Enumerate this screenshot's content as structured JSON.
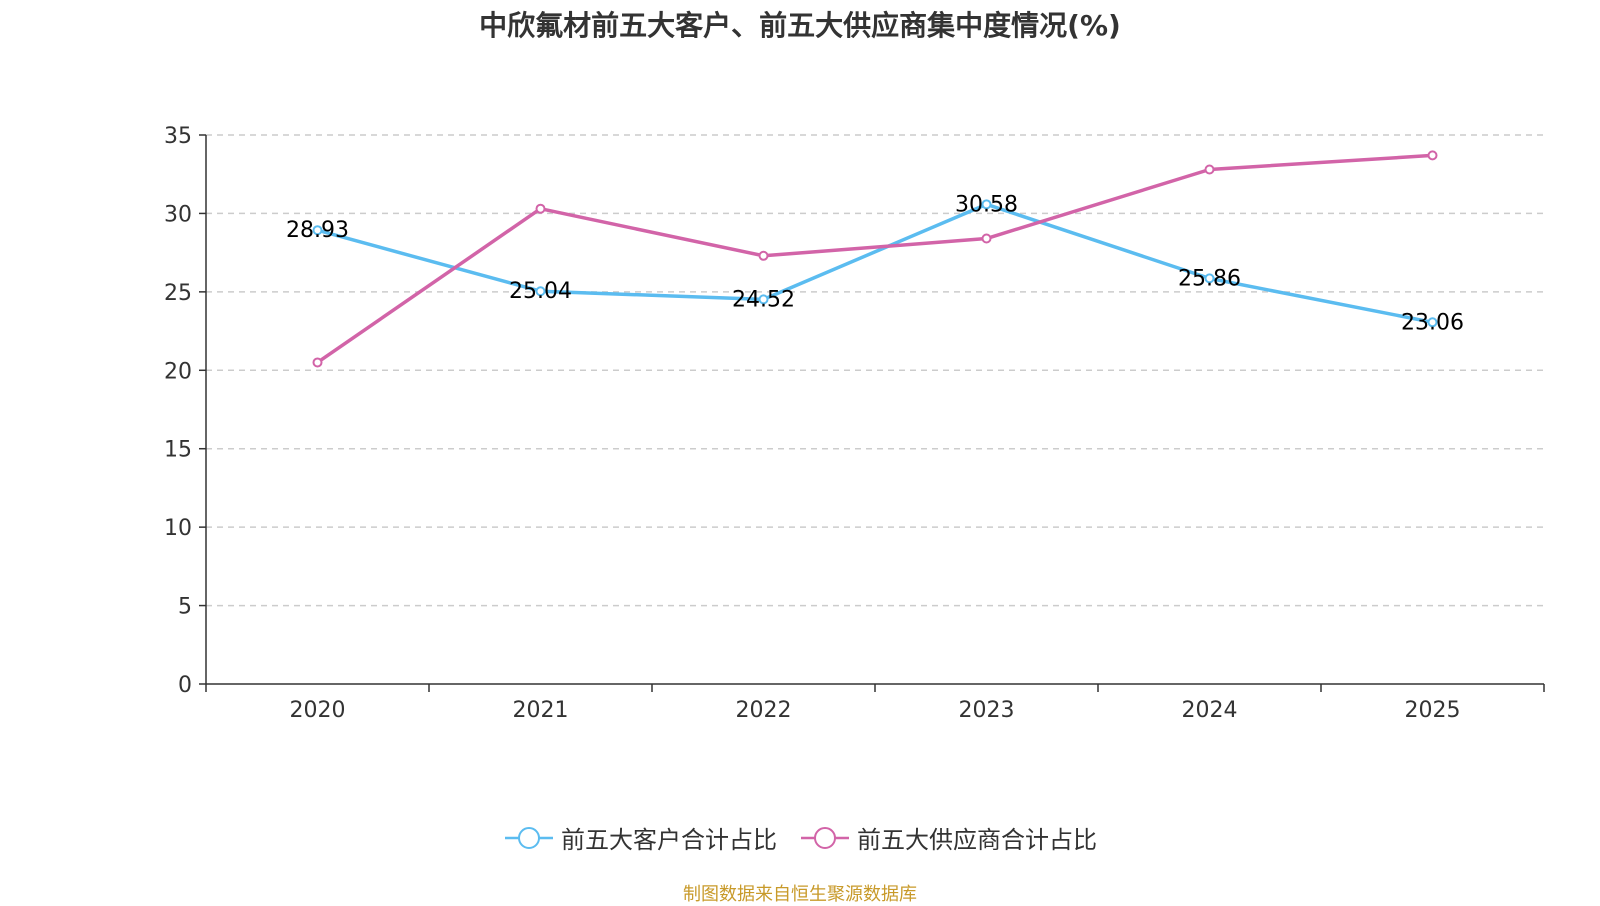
{
  "chart_data": {
    "type": "line",
    "title": "中欣氟材前五大客户、前五大供应商集中度情况(%)",
    "categories": [
      "2020",
      "2021",
      "2022",
      "2023",
      "2024",
      "2025"
    ],
    "ylim": [
      0,
      35
    ],
    "yticks": [
      0,
      5,
      10,
      15,
      20,
      25,
      30,
      35
    ],
    "grid": true,
    "legend_position": "bottom",
    "series": [
      {
        "name": "前五大客户合计占比",
        "color": "#5bbcf0",
        "values": [
          28.93,
          25.04,
          24.52,
          30.58,
          25.86,
          23.06
        ],
        "labels": [
          "28.93",
          "25.04",
          "24.52",
          "30.58",
          "25.86",
          "23.06"
        ]
      },
      {
        "name": "前五大供应商合计占比",
        "color": "#d264a8",
        "values": [
          20.5,
          30.3,
          27.3,
          28.4,
          32.8,
          33.7
        ]
      }
    ]
  },
  "footer": {
    "source": "制图数据来自恒生聚源数据库",
    "source_color": "#c89a2a"
  }
}
